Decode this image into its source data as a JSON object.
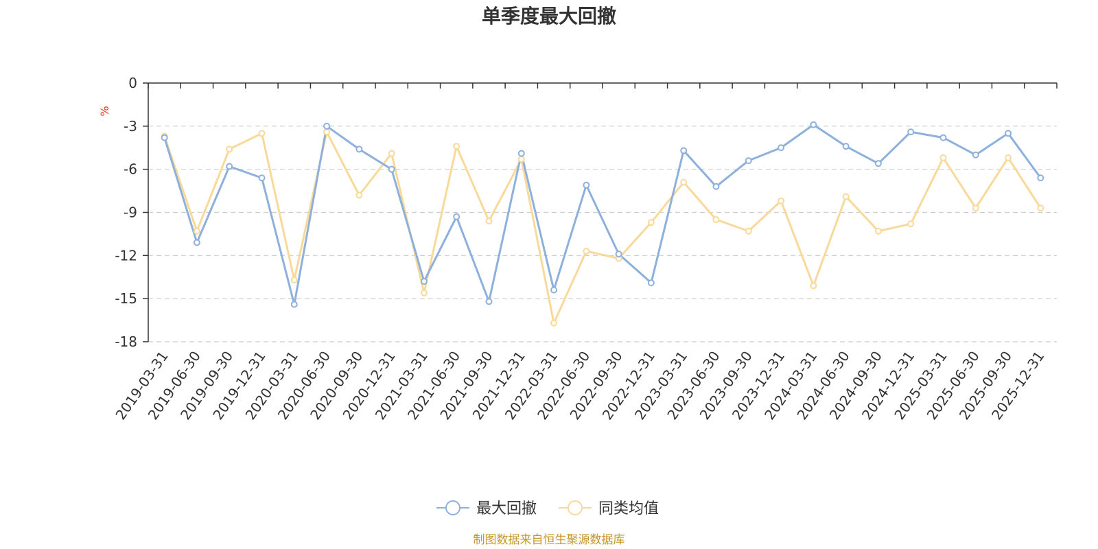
{
  "chart_data": {
    "type": "line",
    "title": "单季度最大回撤",
    "ylabel": "%",
    "ylim": [
      -18,
      0
    ],
    "yticks": [
      0,
      -3,
      -6,
      -9,
      -12,
      -15,
      -18
    ],
    "grid": true,
    "legend_position": "bottom",
    "x": [
      "2019-03-31",
      "2019-06-30",
      "2019-09-30",
      "2019-12-31",
      "2020-03-31",
      "2020-06-30",
      "2020-09-30",
      "2020-12-31",
      "2021-03-31",
      "2021-06-30",
      "2021-09-30",
      "2021-12-31",
      "2022-03-31",
      "2022-06-30",
      "2022-09-30",
      "2022-12-31",
      "2023-03-31",
      "2023-06-30",
      "2023-09-30",
      "2023-12-31",
      "2024-03-31",
      "2024-06-30",
      "2024-09-30",
      "2024-12-31",
      "2025-03-31",
      "2025-06-30",
      "2025-09-30",
      "2025-12-31"
    ],
    "series": [
      {
        "name": "最大回撤",
        "color": "#8eb0dc",
        "values": [
          -3.8,
          -11.1,
          -5.8,
          -6.6,
          -15.4,
          -3.0,
          -4.6,
          -6.0,
          -13.8,
          -9.3,
          -15.2,
          -4.9,
          -14.4,
          -7.1,
          -11.9,
          -13.9,
          -4.7,
          -7.2,
          -5.4,
          -4.5,
          -2.9,
          -4.4,
          -5.6,
          -3.4,
          -3.8,
          -5.0,
          -3.5,
          -6.6
        ]
      },
      {
        "name": "同类均值",
        "color": "#f9d99a",
        "values": [
          -3.7,
          -10.3,
          -4.6,
          -3.5,
          -13.7,
          -3.4,
          -7.8,
          -4.9,
          -14.6,
          -4.4,
          -9.6,
          -5.3,
          -16.7,
          -11.7,
          -12.2,
          -9.7,
          -6.9,
          -9.5,
          -10.3,
          -8.2,
          -14.1,
          -7.9,
          -10.3,
          -9.8,
          -5.2,
          -8.7,
          -5.2,
          -8.7
        ]
      }
    ],
    "source": "制图数据来自恒生聚源数据库"
  }
}
